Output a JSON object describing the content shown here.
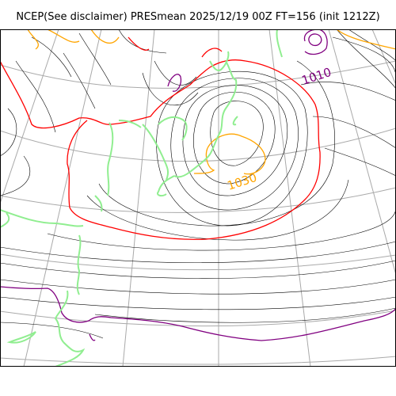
{
  "title": "NCEP(See disclaimer) PRESmean 2025/12/19 00Z FT=156 (init 1212Z)",
  "isobar_labels": [
    {
      "text": "1010",
      "color": "#800080"
    },
    {
      "text": "1030",
      "color": "#ffa500"
    }
  ],
  "colors": {
    "coastline": "#90ee90",
    "isobar": "#000000",
    "isobar_1020": "#ff0000",
    "isobar_1030": "#ffa500",
    "isobar_1010": "#800080",
    "graticule": "#a9a9a9"
  }
}
